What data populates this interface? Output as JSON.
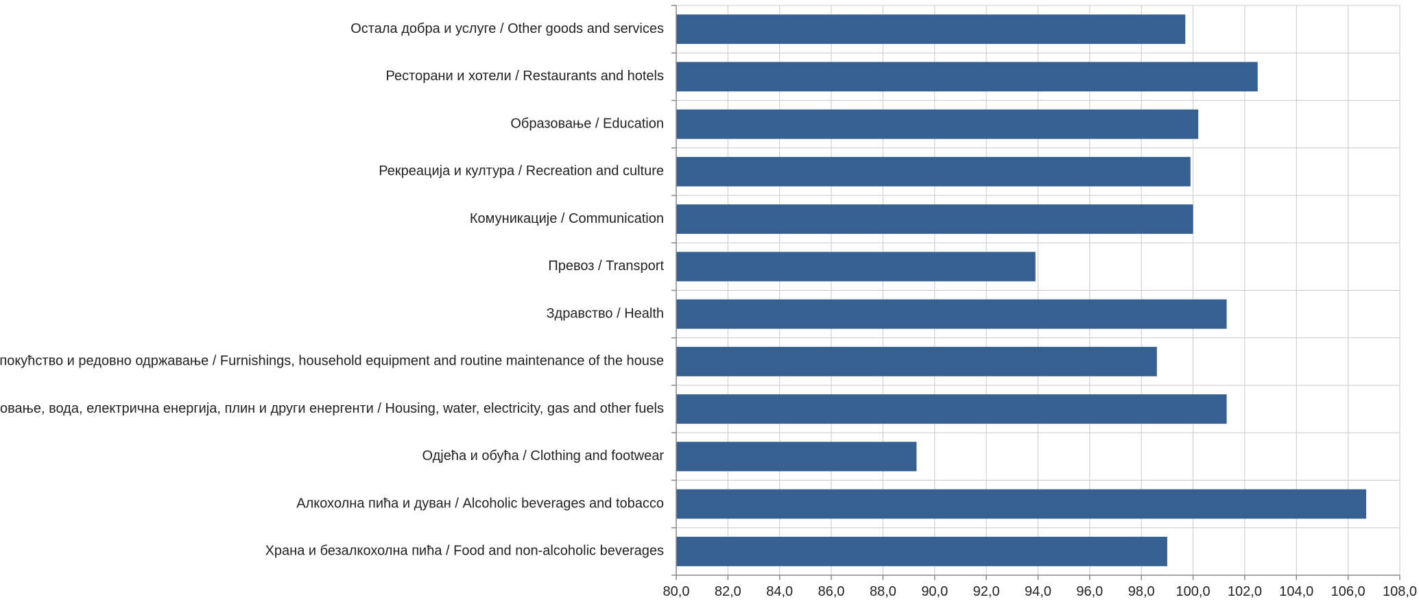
{
  "chart_data": {
    "type": "bar",
    "orientation": "horizontal",
    "categories": [
      "Остала добра и услуге / Other goods and services",
      "Ресторани и хотели / Restaurants and hotels",
      "Образовање / Education",
      "Рекреација и култура / Recreation and culture",
      "Комуникације / Communication",
      "Превоз / Transport",
      "Здравство / Health",
      "Намјештај, покућство и редовно одржавање / Furnishings, household equipment and routine maintenance of the house",
      "Становање, вода, електрична енергија, плин и други енергенти / Housing, water, electricity, gas and other fuels",
      "Одјећа и обућа / Clothing and footwear",
      "Алкохолна пића и дуван / Alcoholic beverages and tobacco",
      "Храна и безалкохолна пића / Food and non-alcoholic beverages"
    ],
    "values": [
      99.7,
      102.5,
      100.2,
      99.9,
      100.0,
      93.9,
      101.3,
      98.6,
      101.3,
      89.3,
      106.7,
      99.0
    ],
    "xlim": [
      80,
      108
    ],
    "x_ticks": [
      "80,0",
      "82,0",
      "84,0",
      "86,0",
      "88,0",
      "90,0",
      "92,0",
      "94,0",
      "96,0",
      "98,0",
      "100,0",
      "102,0",
      "104,0",
      "106,0",
      "108,0"
    ],
    "grid": true,
    "legend": "none",
    "bar_color": "#376092",
    "grid_color": "#c8c8c8",
    "axis_color": "#888888",
    "title": "",
    "xlabel": "",
    "ylabel": ""
  }
}
